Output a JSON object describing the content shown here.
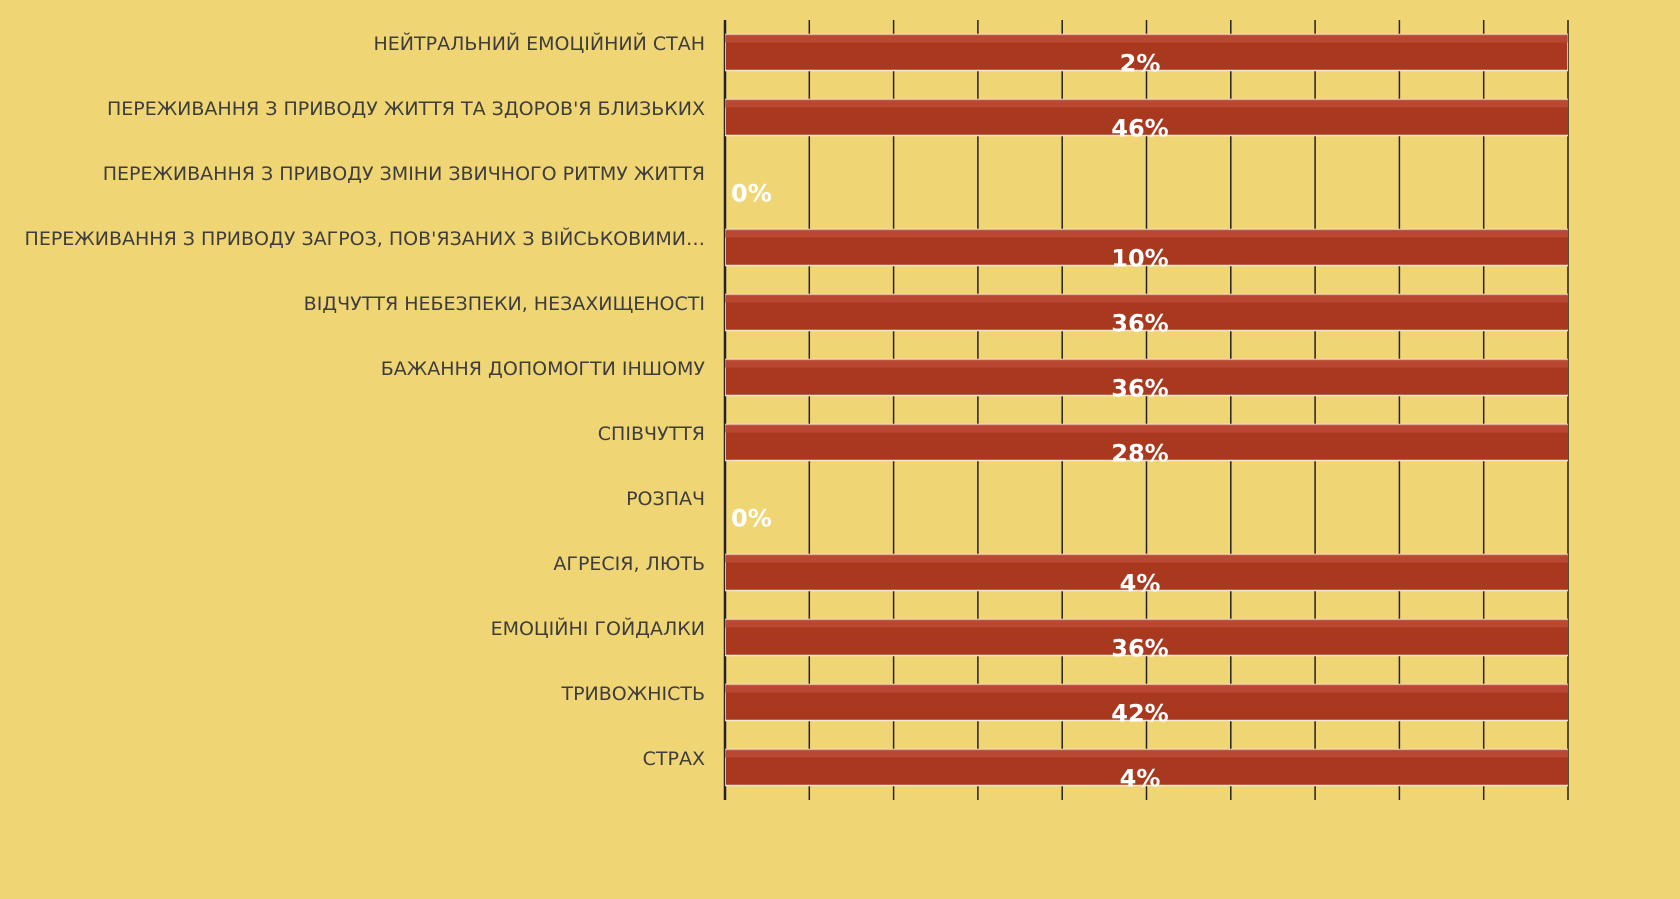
{
  "chart_data": {
    "type": "bar",
    "orientation": "horizontal",
    "categories": [
      "НЕЙТРАЛЬНИЙ ЕМОЦІЙНИЙ СТАН",
      "ПЕРЕЖИВАННЯ З ПРИВОДУ ЖИТТЯ ТА ЗДОРОВ'Я БЛИЗЬКИХ",
      "ПЕРЕЖИВАННЯ З ПРИВОДУ ЗМІНИ ЗВИЧНОГО РИТМУ ЖИТТЯ",
      "ПЕРЕЖИВАННЯ З ПРИВОДУ ЗАГРОЗ, ПОВ'ЯЗАНИХ З ВІЙСЬКОВИМИ…",
      "ВІДЧУТТЯ НЕБЕЗПЕКИ, НЕЗАХИЩЕНОСТІ",
      "БАЖАННЯ ДОПОМОГТИ ІНШОМУ",
      "СПІВЧУТТЯ",
      "РОЗПАЧ",
      "АГРЕСІЯ, ЛЮТЬ",
      "ЕМОЦІЙНІ ГОЙДАЛКИ",
      "ТРИВОЖНІСТЬ",
      "СТРАХ"
    ],
    "values": [
      2,
      46,
      0,
      10,
      36,
      36,
      28,
      0,
      4,
      36,
      42,
      4
    ],
    "value_labels": [
      "2%",
      "46%",
      "0%",
      "10%",
      "36%",
      "36%",
      "28%",
      "0%",
      "4%",
      "36%",
      "42%",
      "4%"
    ],
    "color": "#a8381e",
    "xlim": [
      0,
      2
    ],
    "xticks": [
      0,
      0.2,
      0.4,
      0.6,
      0.8,
      1,
      1.2,
      1.4,
      1.6,
      1.8,
      2
    ],
    "grid": true
  }
}
